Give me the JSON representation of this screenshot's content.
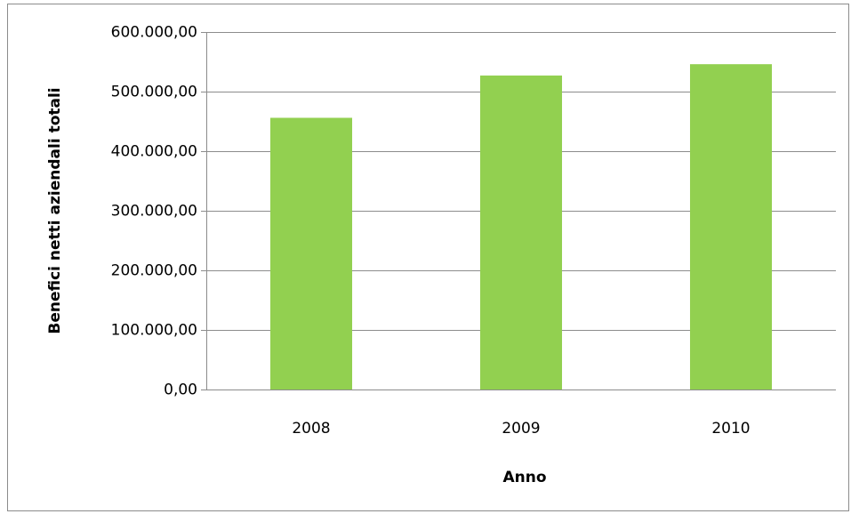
{
  "chart_data": {
    "type": "bar",
    "x_label": "Anno",
    "y_label": "Benefici netti aziendali totali",
    "categories": [
      "2008",
      "2009",
      "2010"
    ],
    "values": [
      456000,
      527000,
      546000
    ],
    "color": "#92d050",
    "ylim": [
      0,
      600000
    ],
    "yticks": [
      {
        "value": 0,
        "label": "0,00"
      },
      {
        "value": 100000,
        "label": "100.000,00"
      },
      {
        "value": 200000,
        "label": "200.000,00"
      },
      {
        "value": 300000,
        "label": "300.000,00"
      },
      {
        "value": 400000,
        "label": "400.000,00"
      },
      {
        "value": 500000,
        "label": "500.000,00"
      },
      {
        "value": 600000,
        "label": "600.000,00"
      }
    ],
    "grid": true
  }
}
